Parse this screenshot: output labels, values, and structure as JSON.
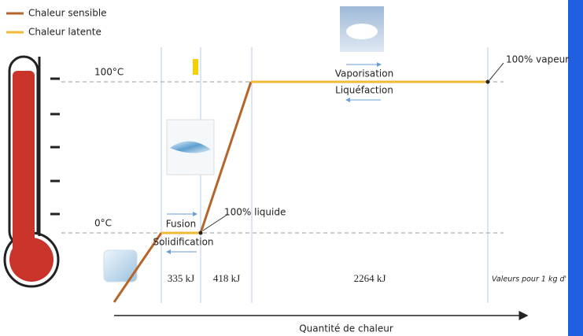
{
  "legend": [
    {
      "label": "Chaleur sensible",
      "color": "#b5652a"
    },
    {
      "label": "Chaleur latente",
      "color": "#f0b93a"
    }
  ],
  "temperatures": {
    "boiling": "100°C",
    "freezing": "0°C"
  },
  "processes": {
    "vaporisation": "Vaporisation",
    "liquefaction": "Liquéfaction",
    "fusion": "Fusion",
    "solidification": "Solidification"
  },
  "states": {
    "liquid": "100% liquide",
    "vapour": "100% vapeur"
  },
  "energies": [
    "335 kJ",
    "418 kJ",
    "2264 kJ"
  ],
  "note": "Valeurs pour 1 kg d'",
  "axis_label": "Quantité de chaleur"
}
